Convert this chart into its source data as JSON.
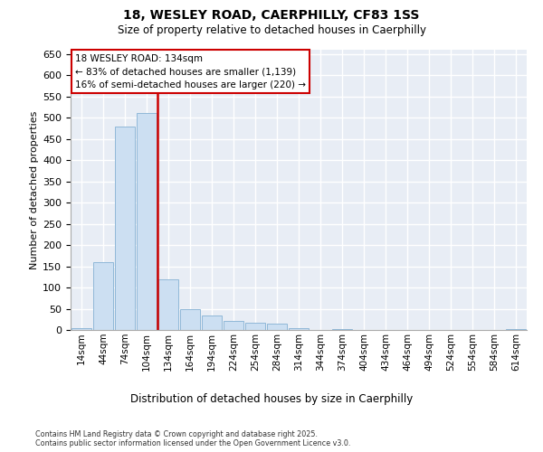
{
  "title_line1": "18, WESLEY ROAD, CAERPHILLY, CF83 1SS",
  "title_line2": "Size of property relative to detached houses in Caerphilly",
  "xlabel": "Distribution of detached houses by size in Caerphilly",
  "ylabel": "Number of detached properties",
  "footnote": "Contains HM Land Registry data © Crown copyright and database right 2025.\nContains public sector information licensed under the Open Government Licence v3.0.",
  "bar_labels": [
    "14sqm",
    "44sqm",
    "74sqm",
    "104sqm",
    "134sqm",
    "164sqm",
    "194sqm",
    "224sqm",
    "254sqm",
    "284sqm",
    "314sqm",
    "344sqm",
    "374sqm",
    "404sqm",
    "434sqm",
    "464sqm",
    "494sqm",
    "524sqm",
    "554sqm",
    "584sqm",
    "614sqm"
  ],
  "bar_values": [
    4,
    160,
    480,
    510,
    120,
    48,
    35,
    22,
    18,
    14,
    5,
    0,
    3,
    0,
    0,
    0,
    0,
    0,
    0,
    0,
    3
  ],
  "bar_color": "#ccdff2",
  "bar_edge_color": "#90b8d8",
  "bg_color": "#e8edf5",
  "grid_color": "#ffffff",
  "vline_index": 4,
  "vline_color": "#cc0000",
  "annotation_text": "18 WESLEY ROAD: 134sqm\n← 83% of detached houses are smaller (1,139)\n16% of semi-detached houses are larger (220) →",
  "annotation_box_edgecolor": "#cc0000",
  "ylim": [
    0,
    660
  ],
  "yticks": [
    0,
    50,
    100,
    150,
    200,
    250,
    300,
    350,
    400,
    450,
    500,
    550,
    600,
    650
  ]
}
